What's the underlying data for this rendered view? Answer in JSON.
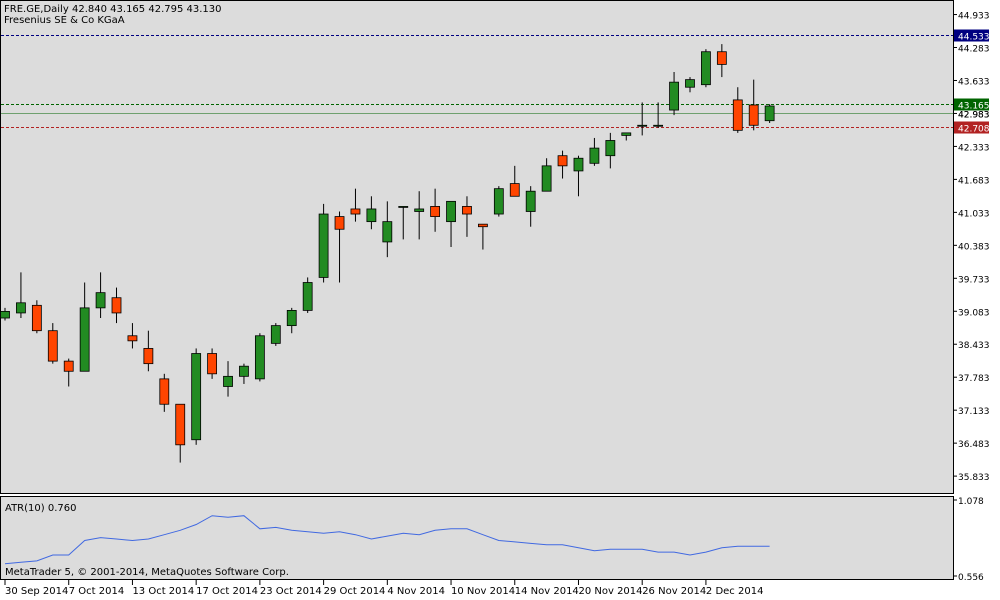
{
  "chart_data": [
    {
      "type": "candlestick",
      "symbol_line": "FRE.GE,Daily",
      "ohlc_line": "42.840 43.165 42.795 43.130",
      "company": "Fresenius SE & Co KGaA",
      "ylim": [
        35.5,
        45.2
      ],
      "price_ticks": [
        "44.933",
        "44.283",
        "43.633",
        "42.983",
        "42.333",
        "41.683",
        "41.033",
        "40.383",
        "39.733",
        "39.083",
        "38.433",
        "37.783",
        "37.133",
        "36.483",
        "35.833"
      ],
      "price_lines": [
        {
          "value": 44.533,
          "label": "44.533",
          "color": "#000080",
          "style": "dashed"
        },
        {
          "value": 43.165,
          "label": "43.165",
          "color": "#006400",
          "style": "dashed"
        },
        {
          "value": 42.983,
          "label": "42.983",
          "color": "#006400",
          "style": "solid"
        },
        {
          "value": 42.708,
          "label": "42.708",
          "color": "#b22222",
          "style": "dashed"
        }
      ],
      "up_color": "#228b22",
      "down_color": "#ff4500",
      "candles": [
        {
          "o": 38.95,
          "h": 39.15,
          "l": 38.9,
          "c": 39.08
        },
        {
          "o": 39.05,
          "h": 39.85,
          "l": 38.95,
          "c": 39.25
        },
        {
          "o": 39.2,
          "h": 39.3,
          "l": 38.65,
          "c": 38.7
        },
        {
          "o": 38.7,
          "h": 38.85,
          "l": 38.05,
          "c": 38.1
        },
        {
          "o": 38.1,
          "h": 38.15,
          "l": 37.6,
          "c": 37.9
        },
        {
          "o": 37.9,
          "h": 39.65,
          "l": 37.9,
          "c": 39.15
        },
        {
          "o": 39.15,
          "h": 39.85,
          "l": 38.95,
          "c": 39.45
        },
        {
          "o": 39.35,
          "h": 39.55,
          "l": 38.85,
          "c": 39.05
        },
        {
          "o": 38.6,
          "h": 38.85,
          "l": 38.35,
          "c": 38.5
        },
        {
          "o": 38.35,
          "h": 38.7,
          "l": 37.9,
          "c": 38.05
        },
        {
          "o": 37.75,
          "h": 37.85,
          "l": 37.1,
          "c": 37.25
        },
        {
          "o": 37.25,
          "h": 37.25,
          "l": 36.1,
          "c": 36.45
        },
        {
          "o": 36.55,
          "h": 38.35,
          "l": 36.45,
          "c": 38.25
        },
        {
          "o": 38.25,
          "h": 38.35,
          "l": 37.75,
          "c": 37.85
        },
        {
          "o": 37.6,
          "h": 38.1,
          "l": 37.4,
          "c": 37.8
        },
        {
          "o": 37.8,
          "h": 38.05,
          "l": 37.65,
          "c": 38.0
        },
        {
          "o": 37.75,
          "h": 38.65,
          "l": 37.7,
          "c": 38.6
        },
        {
          "o": 38.45,
          "h": 38.85,
          "l": 38.4,
          "c": 38.8
        },
        {
          "o": 38.8,
          "h": 39.15,
          "l": 38.65,
          "c": 39.1
        },
        {
          "o": 39.1,
          "h": 39.75,
          "l": 39.05,
          "c": 39.65
        },
        {
          "o": 39.75,
          "h": 41.2,
          "l": 39.65,
          "c": 41.0
        },
        {
          "o": 40.95,
          "h": 41.05,
          "l": 39.65,
          "c": 40.7
        },
        {
          "o": 41.1,
          "h": 41.5,
          "l": 40.85,
          "c": 41.0
        },
        {
          "o": 40.85,
          "h": 41.35,
          "l": 40.7,
          "c": 41.1
        },
        {
          "o": 40.45,
          "h": 41.25,
          "l": 40.15,
          "c": 40.85
        },
        {
          "o": 41.15,
          "h": 41.15,
          "l": 40.5,
          "c": 41.15
        },
        {
          "o": 41.05,
          "h": 41.45,
          "l": 40.5,
          "c": 41.1
        },
        {
          "o": 41.15,
          "h": 41.5,
          "l": 40.65,
          "c": 40.95
        },
        {
          "o": 40.85,
          "h": 41.25,
          "l": 40.35,
          "c": 41.25
        },
        {
          "o": 41.15,
          "h": 41.35,
          "l": 40.55,
          "c": 41.0
        },
        {
          "o": 40.8,
          "h": 40.8,
          "l": 40.3,
          "c": 40.75
        },
        {
          "o": 41.0,
          "h": 41.55,
          "l": 40.95,
          "c": 41.5
        },
        {
          "o": 41.6,
          "h": 41.95,
          "l": 41.35,
          "c": 41.35
        },
        {
          "o": 41.05,
          "h": 41.55,
          "l": 40.75,
          "c": 41.45
        },
        {
          "o": 41.45,
          "h": 42.1,
          "l": 41.45,
          "c": 41.95
        },
        {
          "o": 42.15,
          "h": 42.25,
          "l": 41.7,
          "c": 41.95
        },
        {
          "o": 41.85,
          "h": 42.15,
          "l": 41.35,
          "c": 42.1
        },
        {
          "o": 42.0,
          "h": 42.5,
          "l": 41.95,
          "c": 42.3
        },
        {
          "o": 42.15,
          "h": 42.6,
          "l": 41.9,
          "c": 42.45
        },
        {
          "o": 42.55,
          "h": 42.6,
          "l": 42.45,
          "c": 42.6
        },
        {
          "o": 42.75,
          "h": 43.2,
          "l": 42.55,
          "c": 42.75
        },
        {
          "o": 42.75,
          "h": 43.2,
          "l": 42.7,
          "c": 42.75
        },
        {
          "o": 43.05,
          "h": 43.8,
          "l": 42.95,
          "c": 43.6
        },
        {
          "o": 43.5,
          "h": 43.7,
          "l": 43.4,
          "c": 43.65
        },
        {
          "o": 43.55,
          "h": 44.25,
          "l": 43.5,
          "c": 44.2
        },
        {
          "o": 44.2,
          "h": 44.35,
          "l": 43.7,
          "c": 43.95
        },
        {
          "o": 43.25,
          "h": 43.5,
          "l": 42.6,
          "c": 42.65
        },
        {
          "o": 43.15,
          "h": 43.65,
          "l": 42.65,
          "c": 42.75
        },
        {
          "o": 42.84,
          "h": 43.165,
          "l": 42.795,
          "c": 43.13
        }
      ],
      "date_labels": [
        {
          "index": 0,
          "text": "30 Sep 2014"
        },
        {
          "index": 4,
          "text": "7 Oct 2014"
        },
        {
          "index": 8,
          "text": "13 Oct 2014"
        },
        {
          "index": 12,
          "text": "17 Oct 2014"
        },
        {
          "index": 16,
          "text": "23 Oct 2014"
        },
        {
          "index": 20,
          "text": "29 Oct 2014"
        },
        {
          "index": 24,
          "text": "4 Nov 2014"
        },
        {
          "index": 28,
          "text": "10 Nov 2014"
        },
        {
          "index": 32,
          "text": "14 Nov 2014"
        },
        {
          "index": 36,
          "text": "20 Nov 2014"
        },
        {
          "index": 40,
          "text": "26 Nov 2014"
        },
        {
          "index": 44,
          "text": "2 Dec 2014"
        }
      ]
    },
    {
      "type": "line",
      "title": "ATR(10) 0.760",
      "ylim": [
        0.556,
        1.078
      ],
      "ticks": [
        "1.078",
        "0.556"
      ],
      "color": "#4169e1",
      "values": [
        0.64,
        0.65,
        0.66,
        0.7,
        0.7,
        0.8,
        0.82,
        0.81,
        0.8,
        0.81,
        0.84,
        0.87,
        0.91,
        0.97,
        0.96,
        0.97,
        0.88,
        0.89,
        0.87,
        0.86,
        0.85,
        0.86,
        0.84,
        0.81,
        0.83,
        0.85,
        0.84,
        0.87,
        0.88,
        0.88,
        0.84,
        0.8,
        0.79,
        0.78,
        0.77,
        0.77,
        0.75,
        0.73,
        0.74,
        0.74,
        0.74,
        0.72,
        0.72,
        0.7,
        0.72,
        0.75,
        0.76,
        0.76,
        0.76
      ]
    }
  ],
  "footer": {
    "copyright": "MetaTrader 5, © 2001-2014, MetaQuotes Software Corp."
  }
}
